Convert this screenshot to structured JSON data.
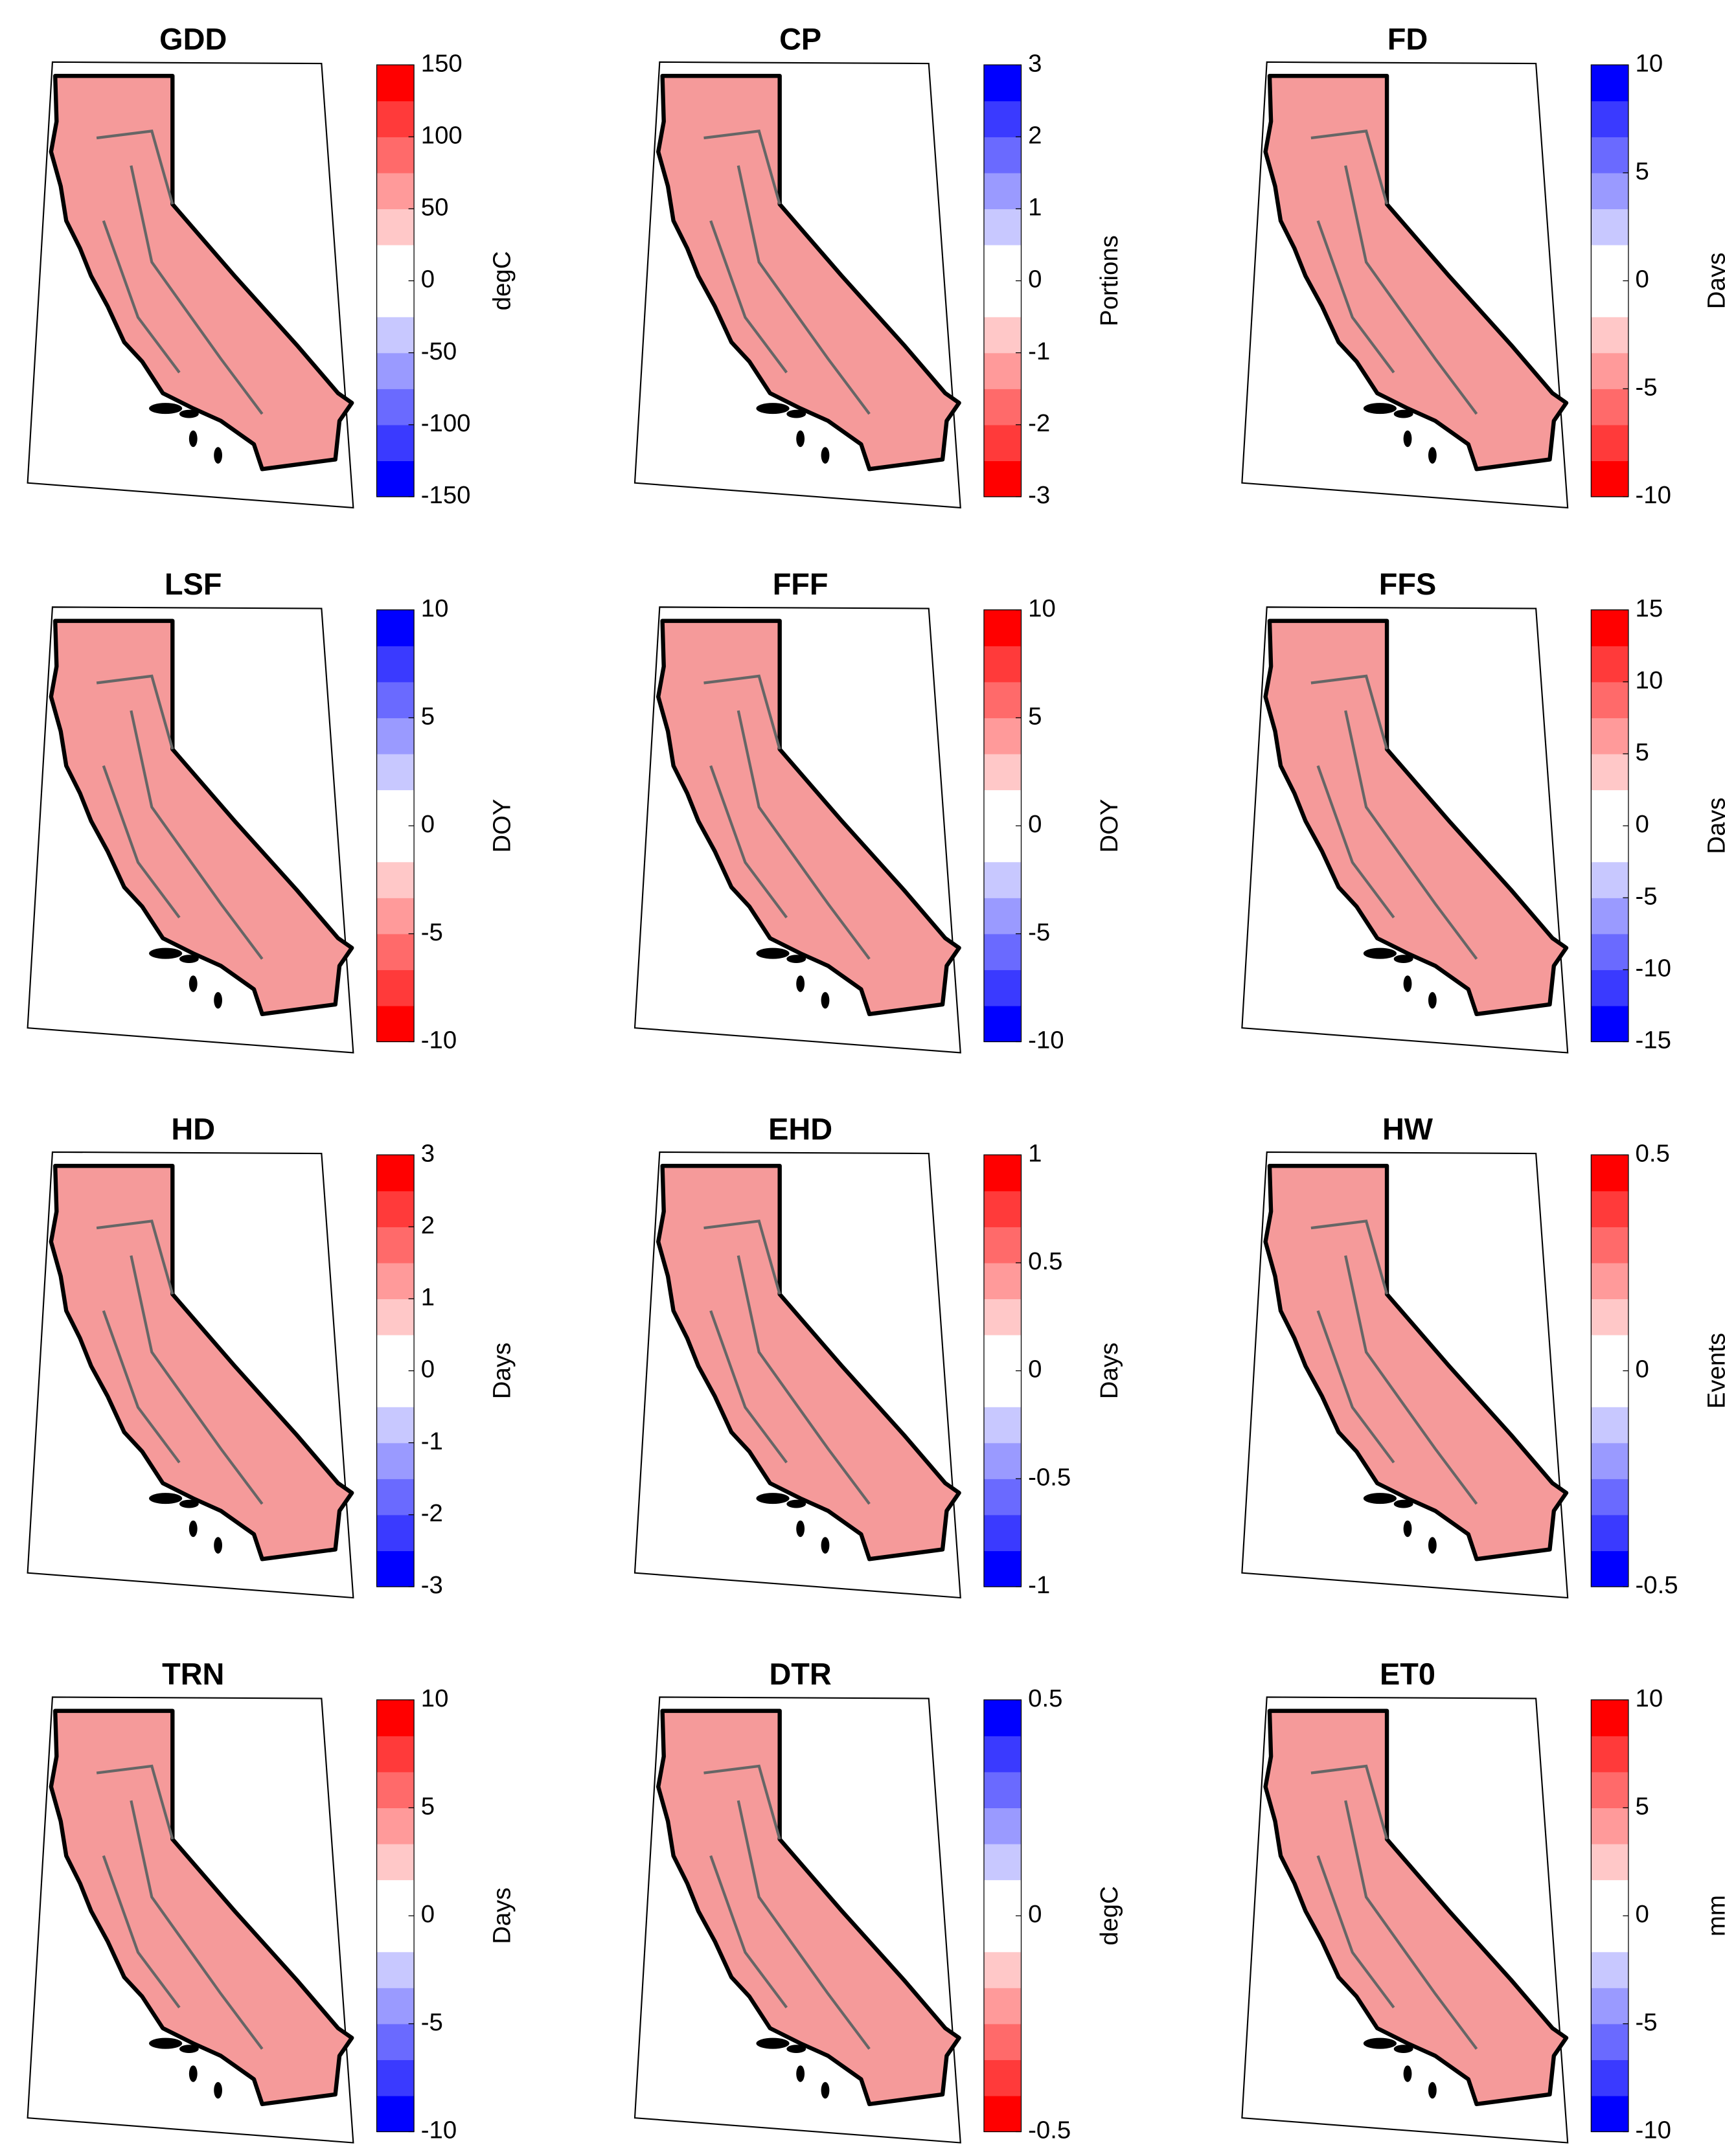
{
  "panels": [
    {
      "title": "GDD",
      "label": "degC",
      "lim": [
        -150,
        150
      ],
      "ticks": [
        150,
        100,
        50,
        0,
        -50,
        -100,
        -150
      ],
      "colormap": "blue-white-red"
    },
    {
      "title": "CP",
      "label": "Portions",
      "lim": [
        -3,
        3
      ],
      "ticks": [
        3,
        2,
        1,
        0,
        -1,
        -2,
        -3
      ],
      "colormap": "red-white-blue"
    },
    {
      "title": "FD",
      "label": "Days",
      "lim": [
        -10,
        10
      ],
      "ticks": [
        10,
        5,
        0,
        -5,
        -10
      ],
      "colormap": "red-white-blue"
    },
    {
      "title": "LSF",
      "label": "DOY",
      "lim": [
        -10,
        10
      ],
      "ticks": [
        10,
        5,
        0,
        -5,
        -10
      ],
      "colormap": "red-white-blue"
    },
    {
      "title": "FFF",
      "label": "DOY",
      "lim": [
        -10,
        10
      ],
      "ticks": [
        10,
        5,
        0,
        -5,
        -10
      ],
      "colormap": "blue-white-red"
    },
    {
      "title": "FFS",
      "label": "Days",
      "lim": [
        -15,
        15
      ],
      "ticks": [
        15,
        10,
        5,
        0,
        -5,
        -10,
        -15
      ],
      "colormap": "blue-white-red"
    },
    {
      "title": "HD",
      "label": "Days",
      "lim": [
        -3,
        3
      ],
      "ticks": [
        3,
        2,
        1,
        0,
        -1,
        -2,
        -3
      ],
      "colormap": "blue-white-red"
    },
    {
      "title": "EHD",
      "label": "Days",
      "lim": [
        -1,
        1
      ],
      "ticks": [
        1,
        0.5,
        0,
        -0.5,
        -1
      ],
      "colormap": "blue-white-red"
    },
    {
      "title": "HW",
      "label": "Events",
      "lim": [
        -0.5,
        0.5
      ],
      "ticks": [
        0.5,
        0,
        -0.5
      ],
      "colormap": "blue-white-red"
    },
    {
      "title": "TRN",
      "label": "Days",
      "lim": [
        -10,
        10
      ],
      "ticks": [
        10,
        5,
        0,
        -5,
        -10
      ],
      "colormap": "blue-white-red"
    },
    {
      "title": "DTR",
      "label": "degC",
      "lim": [
        -0.5,
        0.5
      ],
      "ticks": [
        0.5,
        0,
        -0.5
      ],
      "colormap": "red-white-blue"
    },
    {
      "title": "ET0",
      "label": "mm",
      "lim": [
        -10,
        10
      ],
      "ticks": [
        10,
        5,
        0,
        -5,
        -10
      ],
      "colormap": "blue-white-red"
    }
  ]
}
